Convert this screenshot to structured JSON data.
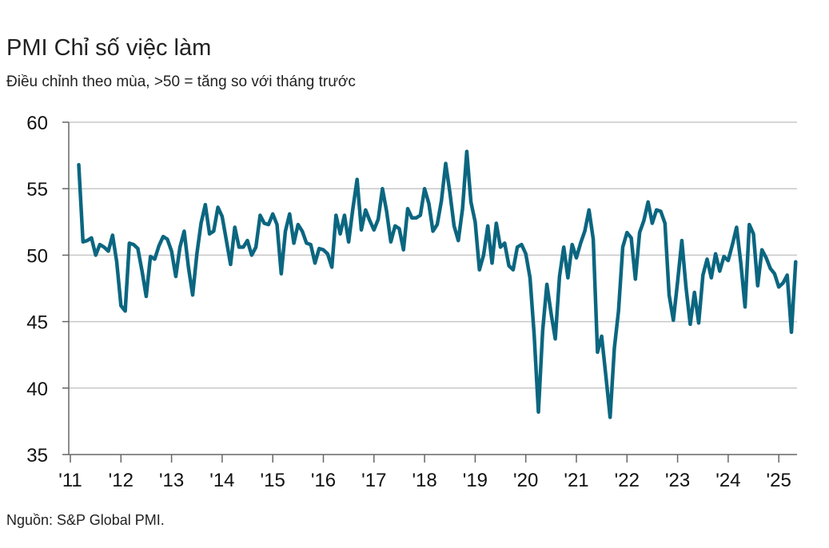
{
  "chart_data": {
    "type": "line",
    "title": "PMI Chỉ số việc làm",
    "subtitle": "Điều chỉnh theo mùa, >50 = tăng so với tháng trước",
    "source": "Nguồn: S&P Global PMI.",
    "ylim": [
      35,
      60
    ],
    "yticks": [
      "60",
      "55",
      "50",
      "45",
      "40",
      "35"
    ],
    "xticks": [
      "'11",
      "'12",
      "'13",
      "'14",
      "'15",
      "'16",
      "'17",
      "'18",
      "'19",
      "'20",
      "'21",
      "'22",
      "'23",
      "'24",
      "'25"
    ],
    "grid": true,
    "line_color": "#0b6680",
    "x_start": "2011-03",
    "series": [
      {
        "values": [
          56.8,
          51.0,
          51.1,
          51.3,
          50.0,
          50.8,
          50.6,
          50.3,
          51.5,
          49.5,
          46.2,
          45.8,
          50.9,
          50.8,
          50.5,
          48.8,
          46.9,
          49.9,
          49.7,
          50.7,
          51.4,
          51.2,
          50.3,
          48.4,
          50.6,
          51.8,
          49.1,
          47.0,
          50.1,
          52.4,
          53.8,
          51.6,
          51.8,
          53.6,
          52.9,
          51.1,
          49.3,
          52.1,
          50.6,
          50.6,
          51.1,
          50.0,
          50.6,
          53.0,
          52.4,
          52.3,
          53.1,
          52.3,
          48.6,
          51.8,
          53.1,
          50.9,
          52.3,
          51.8,
          50.9,
          50.8,
          49.4,
          50.5,
          50.4,
          50.1,
          49.1,
          53.0,
          51.6,
          53.0,
          51.0,
          53.5,
          55.7,
          51.9,
          53.4,
          52.6,
          51.9,
          52.7,
          55.0,
          53.3,
          51.0,
          52.2,
          52.0,
          50.4,
          53.5,
          52.8,
          52.8,
          53.0,
          55.0,
          53.9,
          51.8,
          52.3,
          54.1,
          56.9,
          54.7,
          52.2,
          51.1,
          53.5,
          57.8,
          54.0,
          52.5,
          48.9,
          50.0,
          52.2,
          49.4,
          52.4,
          50.6,
          50.9,
          49.2,
          48.9,
          50.6,
          50.8,
          50.1,
          48.3,
          44.0,
          38.2,
          44.3,
          47.8,
          45.6,
          43.7,
          48.4,
          50.6,
          48.3,
          50.8,
          49.8,
          50.9,
          51.8,
          53.4,
          51.2,
          42.7,
          43.9,
          40.9,
          37.8,
          43.0,
          45.8,
          50.6,
          51.7,
          51.3,
          48.2,
          51.7,
          52.6,
          54.0,
          52.4,
          53.4,
          53.3,
          52.4,
          47.0,
          45.1,
          48.0,
          51.1,
          47.6,
          44.8,
          47.2,
          44.9,
          48.5,
          49.7,
          48.3,
          50.1,
          48.8,
          49.9,
          49.6,
          50.8,
          52.1,
          49.4,
          46.1,
          52.3,
          51.6,
          47.7,
          50.4,
          49.8,
          49.0,
          48.6,
          47.6,
          47.9,
          48.5,
          44.2,
          49.5
        ]
      }
    ]
  }
}
